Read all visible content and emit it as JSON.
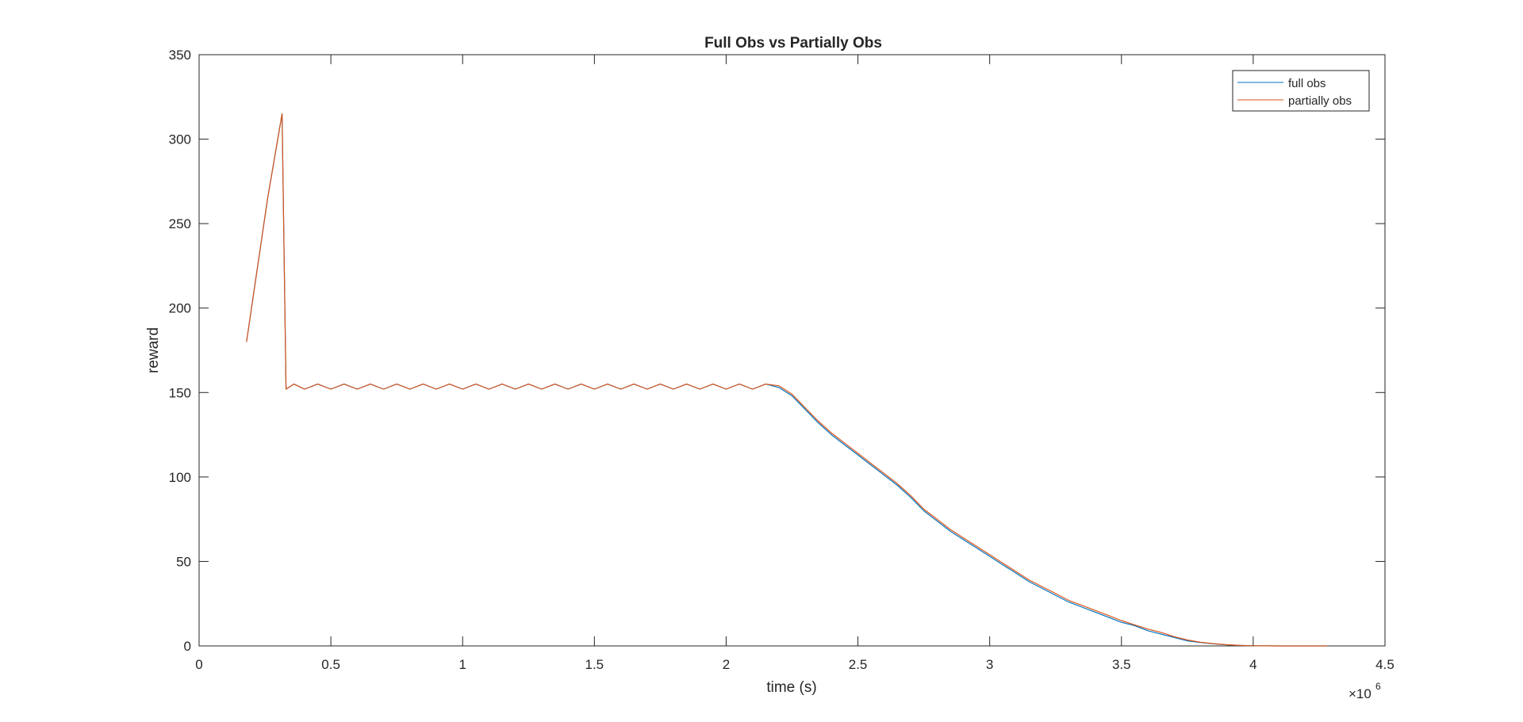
{
  "colors": {
    "full_obs": "#0072BD",
    "partially_obs": "#D95319",
    "axis": "#262626",
    "background": "#ffffff"
  },
  "chart_data": {
    "type": "line",
    "title": "Full Obs vs Partially Obs",
    "xlabel": "time (s)",
    "ylabel": "reward",
    "x_exponent_label": "×10",
    "x_exponent_power": "6",
    "xlim": [
      0,
      4.5
    ],
    "ylim": [
      0,
      350
    ],
    "x_scale_factor": 1000000,
    "xticks": [
      0,
      0.5,
      1,
      1.5,
      2,
      2.5,
      3,
      3.5,
      4,
      4.5
    ],
    "xtick_labels": [
      "0",
      "0.5",
      "1",
      "1.5",
      "2",
      "2.5",
      "3",
      "3.5",
      "4",
      "4.5"
    ],
    "yticks": [
      0,
      50,
      100,
      150,
      200,
      250,
      300,
      350
    ],
    "ytick_labels": [
      "0",
      "50",
      "100",
      "150",
      "200",
      "250",
      "300",
      "350"
    ],
    "grid": false,
    "legend_position": "top-right",
    "series": [
      {
        "name": "full obs",
        "color": "#0072BD",
        "x": [
          0.18,
          0.26,
          0.315,
          0.33,
          0.36,
          0.4,
          0.45,
          0.5,
          0.55,
          0.6,
          0.65,
          0.7,
          0.75,
          0.8,
          0.85,
          0.9,
          0.95,
          1.0,
          1.05,
          1.1,
          1.15,
          1.2,
          1.25,
          1.3,
          1.35,
          1.4,
          1.45,
          1.5,
          1.55,
          1.6,
          1.65,
          1.7,
          1.75,
          1.8,
          1.85,
          1.9,
          1.95,
          2.0,
          2.05,
          2.1,
          2.15,
          2.2,
          2.25,
          2.3,
          2.35,
          2.4,
          2.45,
          2.5,
          2.55,
          2.6,
          2.65,
          2.7,
          2.75,
          2.8,
          2.85,
          2.9,
          2.95,
          3.0,
          3.05,
          3.1,
          3.15,
          3.2,
          3.25,
          3.3,
          3.35,
          3.4,
          3.45,
          3.5,
          3.55,
          3.6,
          3.65,
          3.7,
          3.75,
          3.8,
          3.85,
          3.9,
          3.95,
          4.0,
          4.05,
          4.1,
          4.15,
          4.2,
          4.28
        ],
        "y": [
          180,
          265,
          315,
          152,
          155,
          152,
          155,
          152,
          155,
          152,
          155,
          152,
          155,
          152,
          155,
          152,
          155,
          152,
          155,
          152,
          155,
          152,
          155,
          152,
          155,
          152,
          155,
          152,
          155,
          152,
          155,
          152,
          155,
          152,
          155,
          152,
          155,
          152,
          155,
          152,
          155,
          153,
          148,
          140,
          132,
          125,
          119,
          113,
          107,
          101,
          95,
          88,
          80,
          74,
          68,
          63,
          58,
          53,
          48,
          43,
          38,
          34,
          30,
          26,
          23,
          20,
          17,
          14,
          12,
          9,
          7,
          5,
          3,
          2,
          1.2,
          0.6,
          0.3,
          0.1,
          0.05,
          0,
          0,
          0,
          0
        ]
      },
      {
        "name": "partially obs",
        "color": "#D95319",
        "x": [
          0.18,
          0.26,
          0.315,
          0.33,
          0.36,
          0.4,
          0.45,
          0.5,
          0.55,
          0.6,
          0.65,
          0.7,
          0.75,
          0.8,
          0.85,
          0.9,
          0.95,
          1.0,
          1.05,
          1.1,
          1.15,
          1.2,
          1.25,
          1.3,
          1.35,
          1.4,
          1.45,
          1.5,
          1.55,
          1.6,
          1.65,
          1.7,
          1.75,
          1.8,
          1.85,
          1.9,
          1.95,
          2.0,
          2.05,
          2.1,
          2.15,
          2.2,
          2.25,
          2.3,
          2.35,
          2.4,
          2.45,
          2.5,
          2.55,
          2.6,
          2.65,
          2.7,
          2.75,
          2.8,
          2.85,
          2.9,
          2.95,
          3.0,
          3.05,
          3.1,
          3.15,
          3.2,
          3.25,
          3.3,
          3.35,
          3.4,
          3.45,
          3.5,
          3.55,
          3.6,
          3.65,
          3.7,
          3.75,
          3.8,
          3.85,
          3.9,
          3.95,
          4.0,
          4.05,
          4.1,
          4.15,
          4.2,
          4.28
        ],
        "y": [
          180,
          265,
          315,
          152,
          155,
          152,
          155,
          152,
          155,
          152,
          155,
          152,
          155,
          152,
          155,
          152,
          155,
          152,
          155,
          152,
          155,
          152,
          155,
          152,
          155,
          152,
          155,
          152,
          155,
          152,
          155,
          152,
          155,
          152,
          155,
          152,
          155,
          152,
          155,
          152,
          155,
          154,
          149,
          141,
          133,
          126,
          120,
          114,
          108,
          102,
          96,
          89,
          81,
          75,
          69,
          64,
          59,
          54,
          49,
          44,
          39,
          35,
          31,
          27,
          24,
          21,
          18,
          15,
          12.5,
          10,
          8,
          5.5,
          3.5,
          2.2,
          1.3,
          0.7,
          0.3,
          0.1,
          0.05,
          0,
          0,
          0,
          0
        ]
      }
    ]
  }
}
